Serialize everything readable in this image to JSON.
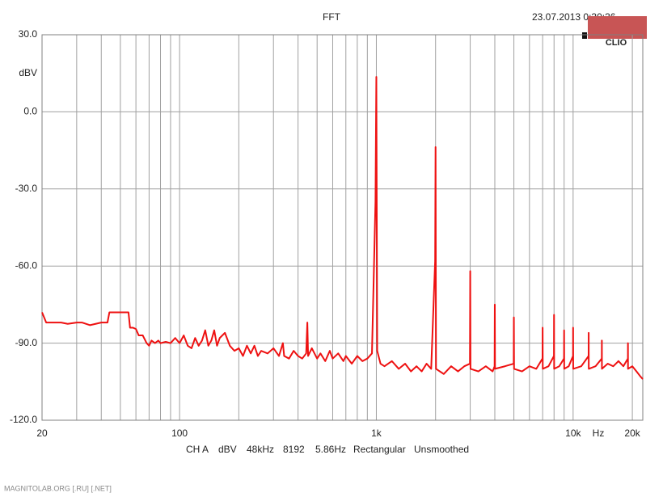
{
  "chart_data": {
    "type": "line",
    "title": "FFT",
    "timestamp": "23.07.2013 0:30:36",
    "logo": "CLIO",
    "ylabel": "dBV",
    "xlabel": "Hz",
    "caption": [
      "CH A",
      "dBV",
      "48kHz",
      "8192",
      "5.86Hz",
      "Rectangular",
      "Unsmoothed"
    ],
    "watermark": "MAGNITOLAB.ORG [.RU] [.NET]",
    "xscale": "log",
    "grid": true,
    "color": "#ee1111",
    "xlim": [
      20,
      22600
    ],
    "ylim": [
      -120,
      30
    ],
    "yticks": [
      {
        "value": 30,
        "label": "30.0"
      },
      {
        "value": 0,
        "label": "0.0"
      },
      {
        "value": -30,
        "label": "-30.0"
      },
      {
        "value": -60,
        "label": "-60.0"
      },
      {
        "value": -90,
        "label": "-90.0"
      },
      {
        "value": -120,
        "label": "-120.0"
      }
    ],
    "xticks": [
      20,
      100,
      {
        "value": 1000,
        "label": "1k"
      },
      {
        "value": 10000,
        "label": "10k"
      },
      {
        "value": 20000,
        "label": "20k"
      }
    ],
    "xgrid": [
      30,
      40,
      50,
      60,
      70,
      80,
      90,
      100,
      200,
      300,
      400,
      500,
      600,
      700,
      800,
      900,
      1000,
      2000,
      3000,
      4000,
      5000,
      6000,
      7000,
      8000,
      9000,
      10000,
      20000
    ],
    "x": [
      20,
      21,
      22,
      25,
      27,
      30,
      32,
      35,
      40,
      43,
      44,
      50,
      55,
      56,
      58,
      60,
      62,
      65,
      68,
      70,
      72,
      75,
      78,
      80,
      85,
      90,
      95,
      100,
      105,
      110,
      115,
      120,
      125,
      130,
      135,
      140,
      145,
      150,
      155,
      160,
      170,
      180,
      190,
      200,
      210,
      220,
      230,
      240,
      250,
      260,
      280,
      300,
      320,
      335,
      340,
      360,
      380,
      400,
      420,
      440,
      446,
      450,
      470,
      500,
      520,
      550,
      580,
      600,
      640,
      680,
      700,
      750,
      800,
      850,
      900,
      950,
      990,
      1000,
      1010,
      1050,
      1100,
      1200,
      1300,
      1400,
      1500,
      1600,
      1700,
      1800,
      1900,
      1990,
      2000,
      2010,
      2200,
      2400,
      2600,
      2800,
      2990,
      3000,
      3010,
      3300,
      3600,
      3900,
      3990,
      4000,
      4010,
      4500,
      4990,
      5000,
      5010,
      5500,
      6000,
      6500,
      6990,
      7000,
      7010,
      7500,
      7990,
      8000,
      8010,
      8500,
      8990,
      9000,
      9010,
      9500,
      9990,
      10000,
      10010,
      11000,
      11990,
      12000,
      12010,
      13000,
      13990,
      14000,
      14010,
      15000,
      16000,
      17000,
      18000,
      18990,
      19000,
      19010,
      20000,
      21000,
      22000,
      22600
    ],
    "values": [
      -78,
      -82,
      -82,
      -82,
      -82.5,
      -82,
      -82,
      -83,
      -82,
      -82,
      -78,
      -78,
      -78,
      -84,
      -84,
      -84.5,
      -87,
      -87,
      -90,
      -91,
      -89,
      -90,
      -89,
      -90,
      -89.5,
      -90,
      -88,
      -90,
      -87,
      -91,
      -92,
      -88,
      -91,
      -89,
      -85,
      -91,
      -89,
      -85,
      -91,
      -88,
      -86,
      -91,
      -93,
      -92,
      -95,
      -91,
      -94,
      -91,
      -95,
      -93,
      -94,
      -92,
      -95,
      -90,
      -95,
      -96,
      -93,
      -95,
      -96,
      -94,
      -82,
      -95,
      -92,
      -96,
      -94,
      -97,
      -93,
      -96,
      -94,
      -97,
      -95,
      -98,
      -95,
      -97,
      -96,
      -94,
      -35,
      13.6,
      -93,
      -98,
      -99,
      -97,
      -100,
      -98,
      -101,
      -99,
      -101,
      -98,
      -100,
      -58,
      -13.7,
      -100,
      -102,
      -99,
      -101,
      -99,
      -98,
      -62,
      -100,
      -101,
      -99,
      -101,
      -99,
      -75,
      -100,
      -99,
      -98,
      -80,
      -100,
      -101,
      -99,
      -100,
      -96,
      -84,
      -100,
      -99,
      -95,
      -79,
      -100,
      -99,
      -96,
      -85,
      -100,
      -99,
      -95,
      -84,
      -100,
      -99,
      -95,
      -86,
      -100,
      -99,
      -96,
      -89,
      -100,
      -98,
      -99,
      -97,
      -99,
      -96,
      -90,
      -100,
      -99,
      -101,
      -103,
      -104
    ]
  }
}
